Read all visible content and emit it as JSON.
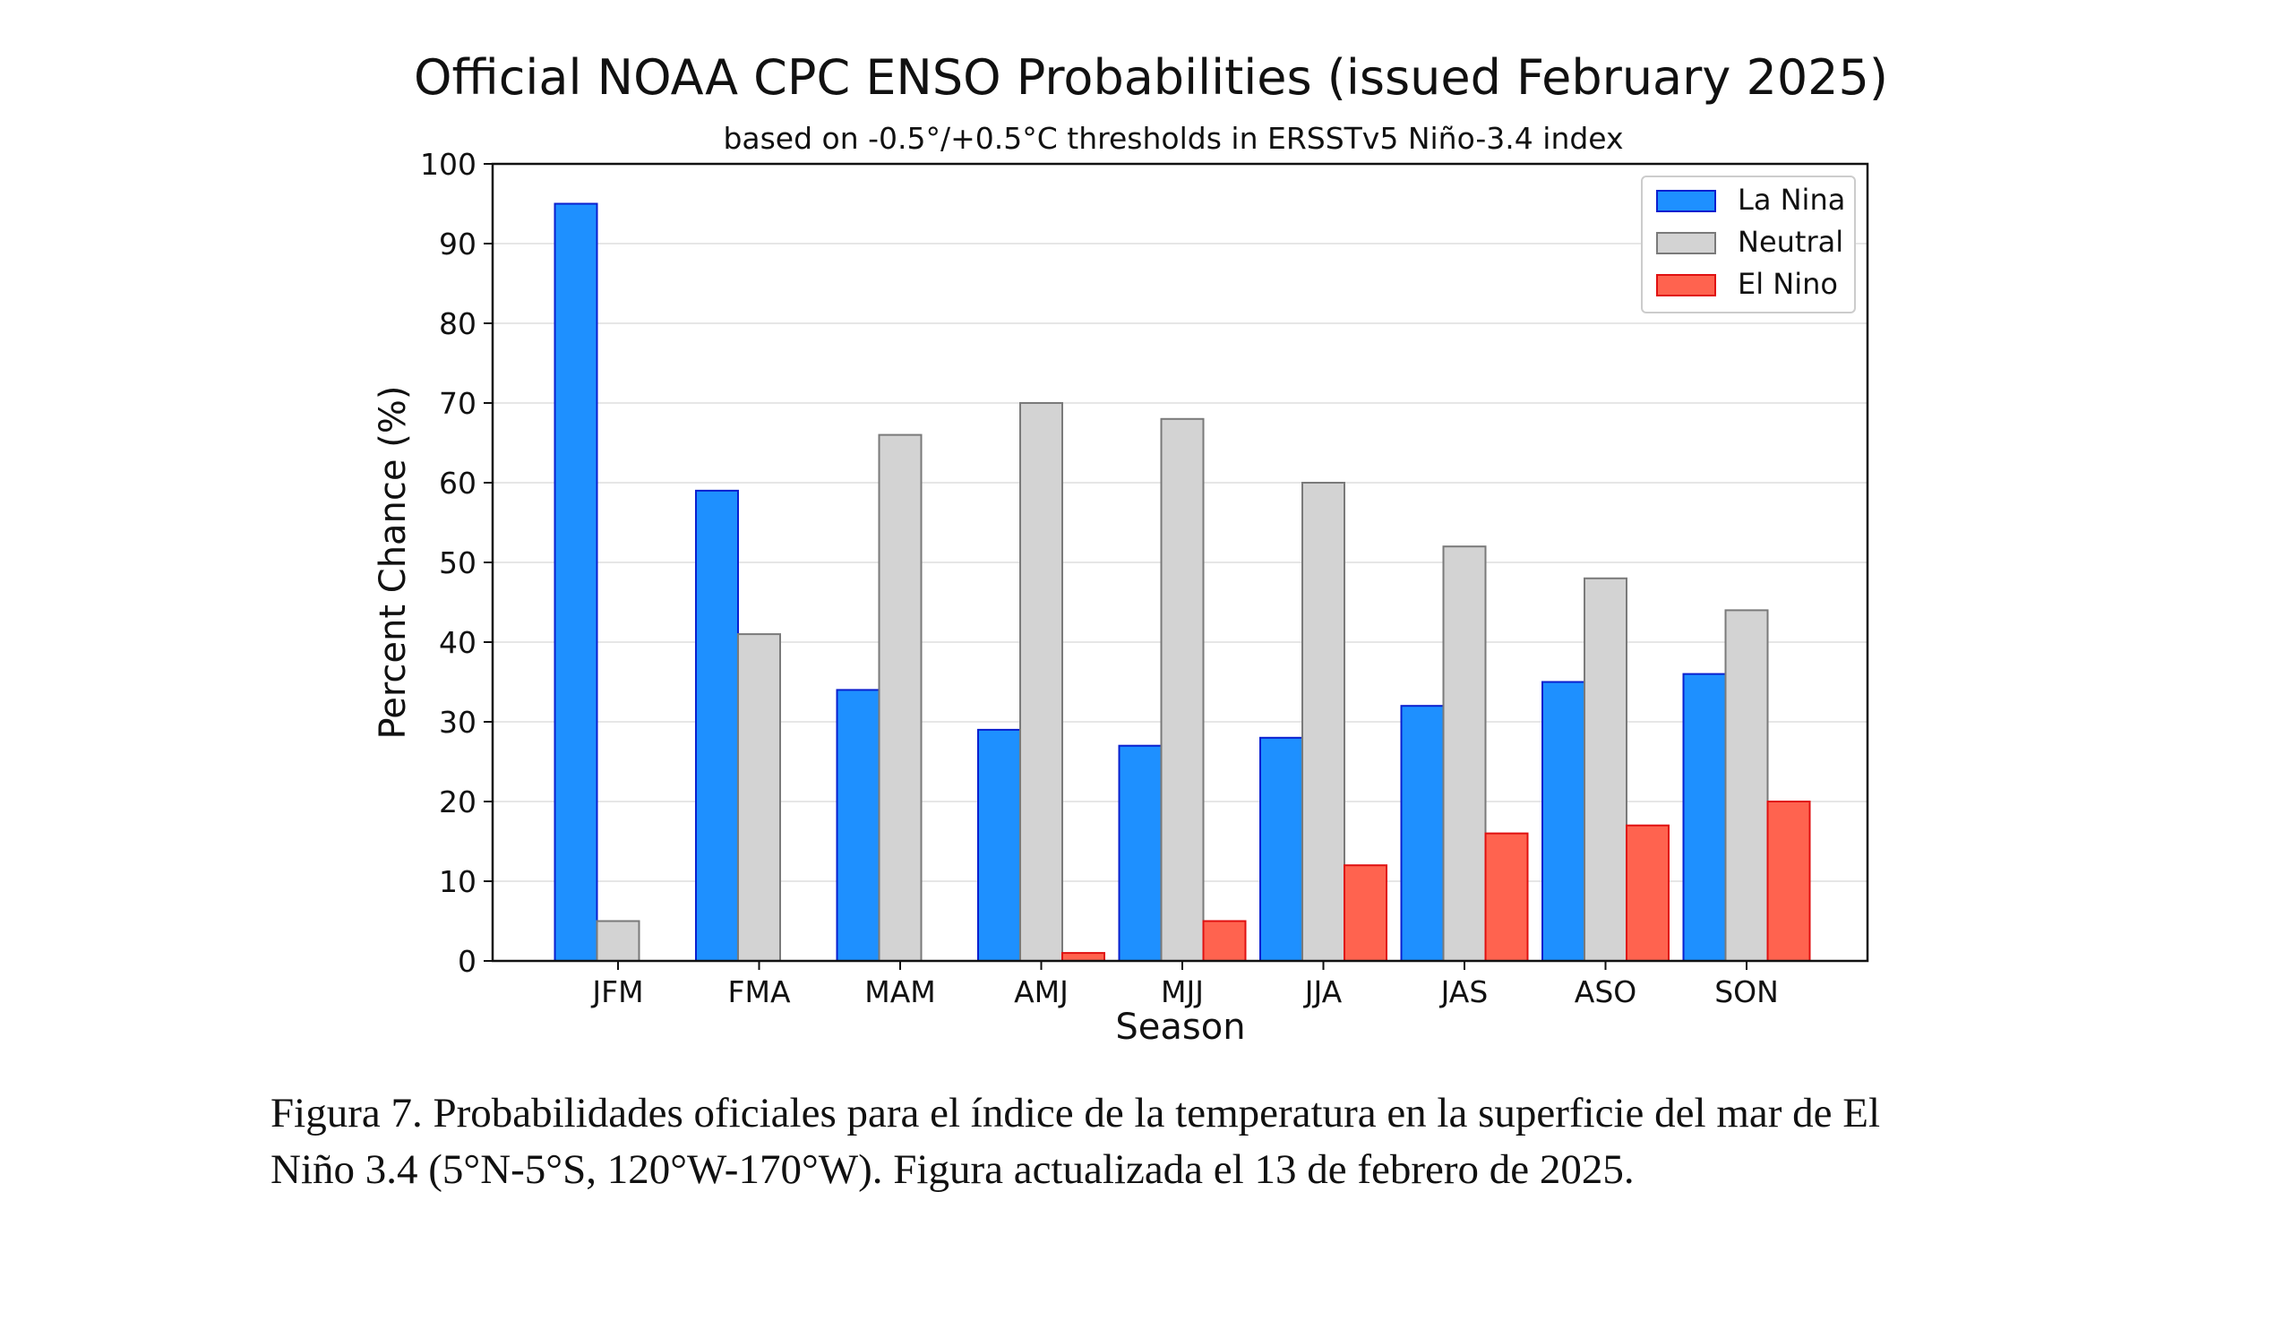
{
  "chart_data": {
    "type": "bar",
    "title": "Official NOAA CPC ENSO Probabilities (issued February 2025)",
    "subtitle": "based on -0.5°/+0.5°C thresholds in ERSSTv5 Niño-3.4 index",
    "xlabel": "Season",
    "ylabel": "Percent Chance (%)",
    "ylim": [
      0,
      100
    ],
    "yticks": [
      0,
      10,
      20,
      30,
      40,
      50,
      60,
      70,
      80,
      90,
      100
    ],
    "grid": true,
    "legend_position": "top-right",
    "categories": [
      "JFM",
      "FMA",
      "MAM",
      "AMJ",
      "MJJ",
      "JJA",
      "JAS",
      "ASO",
      "SON"
    ],
    "series": [
      {
        "name": "La Nina",
        "color": "#1e90ff",
        "edge": "#0a1fcf",
        "values": [
          95,
          59,
          34,
          29,
          27,
          28,
          32,
          35,
          36
        ]
      },
      {
        "name": "Neutral",
        "color": "#d3d3d3",
        "edge": "#7a7a7a",
        "values": [
          5,
          41,
          66,
          70,
          68,
          60,
          52,
          48,
          44
        ]
      },
      {
        "name": "El Nino",
        "color": "#ff634f",
        "edge": "#e01010",
        "values": [
          0,
          0,
          0,
          1,
          5,
          12,
          16,
          17,
          20
        ]
      }
    ]
  },
  "caption": {
    "line1": "Figura 7. Probabilidades oficiales para el índice de la temperatura en la superficie del mar de El",
    "line2": "Niño 3.4  (5°N-5°S, 120°W-170°W). Figura actualizada el 13 de febrero de 2025."
  }
}
